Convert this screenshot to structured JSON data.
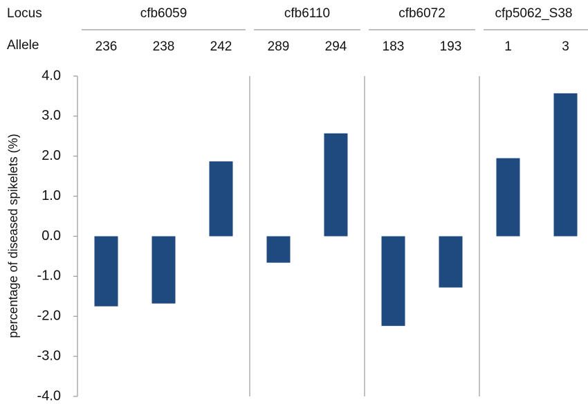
{
  "chart_data": {
    "type": "bar",
    "row_labels": [
      "Locus",
      "Allele"
    ],
    "ylabel": "percentage of diseased spikelets (%)",
    "color": "#1f4a80",
    "ylim": [
      -4,
      4
    ],
    "yticks": [
      {
        "value": -4,
        "label": "-4.0"
      },
      {
        "value": -3,
        "label": "-3.0"
      },
      {
        "value": -2,
        "label": "-2.0"
      },
      {
        "value": -1,
        "label": "-1.0"
      },
      {
        "value": 0,
        "label": "0.0"
      },
      {
        "value": 1,
        "label": "1.0"
      },
      {
        "value": 2,
        "label": "2.0"
      },
      {
        "value": 3,
        "label": "3.0"
      },
      {
        "value": 4,
        "label": "4.0"
      }
    ],
    "groups": [
      {
        "name": "cfb6059",
        "categories": [
          "236",
          "238",
          "242"
        ],
        "values": [
          -1.75,
          -1.68,
          1.87
        ]
      },
      {
        "name": "cfb6110",
        "categories": [
          "289",
          "294"
        ],
        "values": [
          -0.66,
          2.57
        ]
      },
      {
        "name": "cfb6072",
        "categories": [
          "183",
          "193"
        ],
        "values": [
          -2.24,
          -1.28
        ]
      },
      {
        "name": "cfp5062_S38",
        "categories": [
          "1",
          "3"
        ],
        "values": [
          1.95,
          3.57
        ]
      }
    ]
  }
}
